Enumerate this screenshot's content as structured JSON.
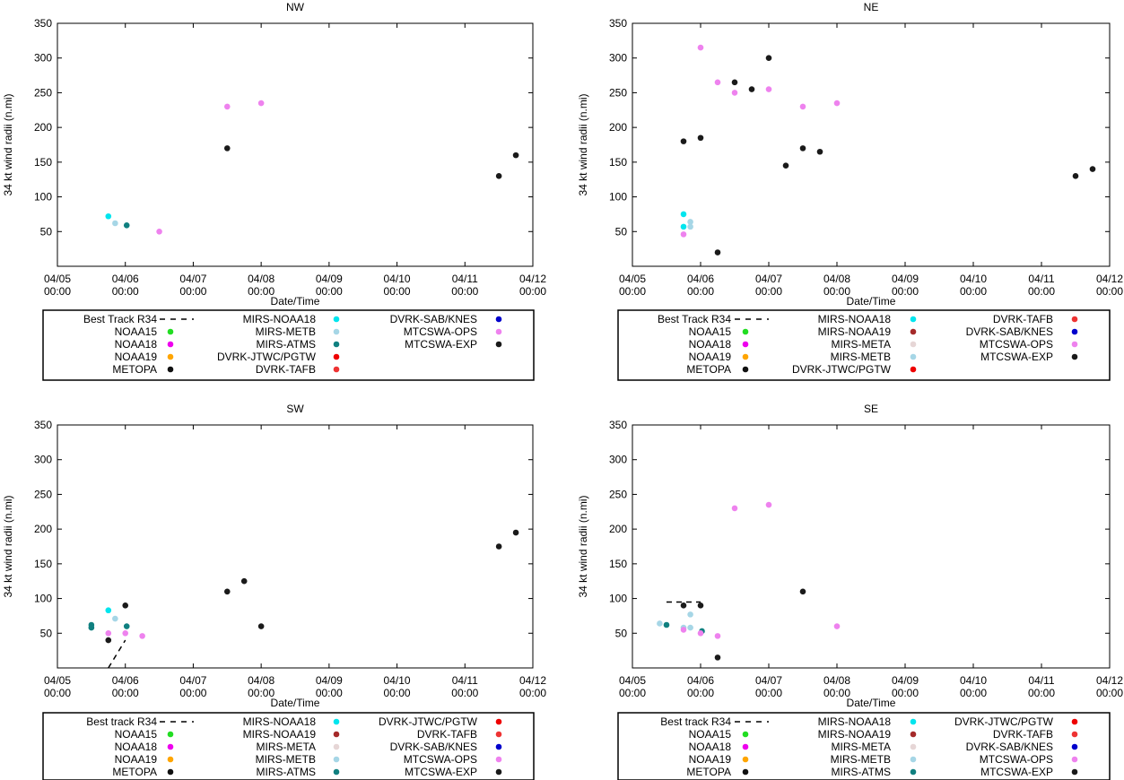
{
  "figure": {
    "xlabel": "Date/Time",
    "ylabel": "34 kt wind radii (n.mi)"
  },
  "colors": {
    "Best Track R34": "#000000",
    "Best track R34": "#000000",
    "NOAA15": "#22dd22",
    "NOAA18": "#ee00ee",
    "NOAA19": "#ffa500",
    "METOPA": "#111111",
    "MIRS-NOAA18": "#00e5ee",
    "MIRS-NOAA19": "#a52a2a",
    "MIRS-META": "#e6d6d6",
    "MIRS-METB": "#a6d6e6",
    "MIRS-ATMS": "#108080",
    "DVRK-JTWC/PGTW": "#ee0000",
    "DVRK-TAFB": "#ee3333",
    "DVRK-SAB/KNES": "#0000cc",
    "MTCSWA-OPS": "#ee82ee",
    "MTCSWA-EXP": "#1a1a1a"
  },
  "chart_data": [
    {
      "type": "scatter",
      "title": "NW",
      "xlabel": "Date/Time",
      "ylabel": "34 kt wind radii (n.mi)",
      "xlim": [
        5,
        12
      ],
      "ylim": [
        0,
        350
      ],
      "x_ticks": [
        {
          "x": 5,
          "date": "04/05",
          "time": "00:00"
        },
        {
          "x": 6,
          "date": "04/06",
          "time": "00:00"
        },
        {
          "x": 7,
          "date": "04/07",
          "time": "00:00"
        },
        {
          "x": 8,
          "date": "04/08",
          "time": "00:00"
        },
        {
          "x": 9,
          "date": "04/09",
          "time": "00:00"
        },
        {
          "x": 10,
          "date": "04/10",
          "time": "00:00"
        },
        {
          "x": 11,
          "date": "04/11",
          "time": "00:00"
        },
        {
          "x": 12,
          "date": "04/12",
          "time": "00:00"
        }
      ],
      "y_ticks": [
        "50",
        "100",
        "150",
        "200",
        "250",
        "300",
        "350"
      ],
      "legend": {
        "columns": [
          [
            "Best Track R34",
            "NOAA15",
            "NOAA18",
            "NOAA19",
            "METOPA"
          ],
          [
            "MIRS-NOAA18",
            "MIRS-METB",
            "MIRS-ATMS",
            "DVRK-JTWC/PGTW",
            "DVRK-TAFB"
          ],
          [
            "DVRK-SAB/KNES",
            "MTCSWA-OPS",
            "MTCSWA-EXP"
          ]
        ]
      },
      "series": [
        {
          "name": "MIRS-NOAA18",
          "points": [
            [
              5.75,
              72
            ]
          ]
        },
        {
          "name": "MIRS-METB",
          "points": [
            [
              5.85,
              62
            ]
          ]
        },
        {
          "name": "MIRS-ATMS",
          "points": [
            [
              6.02,
              59
            ]
          ]
        },
        {
          "name": "MTCSWA-OPS",
          "points": [
            [
              6.5,
              50
            ],
            [
              7.5,
              230
            ],
            [
              8.0,
              235
            ]
          ]
        },
        {
          "name": "MTCSWA-EXP",
          "points": [
            [
              7.5,
              170
            ],
            [
              11.5,
              130
            ],
            [
              11.75,
              160
            ]
          ]
        }
      ]
    },
    {
      "type": "scatter",
      "title": "NE",
      "xlabel": "Date/Time",
      "ylabel": "34 kt wind radii (n.mi)",
      "xlim": [
        5,
        12
      ],
      "ylim": [
        0,
        350
      ],
      "x_ticks": [
        {
          "x": 5,
          "date": "04/05",
          "time": "00:00"
        },
        {
          "x": 6,
          "date": "04/06",
          "time": "00:00"
        },
        {
          "x": 7,
          "date": "04/07",
          "time": "00:00"
        },
        {
          "x": 8,
          "date": "04/08",
          "time": "00:00"
        },
        {
          "x": 9,
          "date": "04/09",
          "time": "00:00"
        },
        {
          "x": 10,
          "date": "04/10",
          "time": "00:00"
        },
        {
          "x": 11,
          "date": "04/11",
          "time": "00:00"
        },
        {
          "x": 12,
          "date": "04/12",
          "time": "00:00"
        }
      ],
      "y_ticks": [
        "50",
        "100",
        "150",
        "200",
        "250",
        "300",
        "350"
      ],
      "legend": {
        "columns": [
          [
            "Best Track R34",
            "NOAA15",
            "NOAA18",
            "NOAA19",
            "METOPA"
          ],
          [
            "MIRS-NOAA18",
            "MIRS-NOAA19",
            "MIRS-META",
            "MIRS-METB",
            "DVRK-JTWC/PGTW"
          ],
          [
            "DVRK-TAFB",
            "DVRK-SAB/KNES",
            "MTCSWA-OPS",
            "MTCSWA-EXP"
          ]
        ]
      },
      "series": [
        {
          "name": "MIRS-NOAA18",
          "points": [
            [
              5.75,
              75
            ],
            [
              5.75,
              57
            ]
          ]
        },
        {
          "name": "MIRS-METB",
          "points": [
            [
              5.85,
              64
            ],
            [
              5.85,
              57
            ]
          ]
        },
        {
          "name": "MTCSWA-OPS",
          "points": [
            [
              5.75,
              46
            ],
            [
              6.0,
              315
            ],
            [
              6.25,
              265
            ],
            [
              6.5,
              250
            ],
            [
              7.0,
              255
            ],
            [
              7.5,
              230
            ],
            [
              8.0,
              235
            ]
          ]
        },
        {
          "name": "MTCSWA-EXP",
          "points": [
            [
              5.75,
              180
            ],
            [
              6.0,
              185
            ],
            [
              6.25,
              20
            ],
            [
              6.5,
              265
            ],
            [
              6.75,
              255
            ],
            [
              7.0,
              300
            ],
            [
              7.25,
              145
            ],
            [
              7.5,
              170
            ],
            [
              7.75,
              165
            ],
            [
              11.5,
              130
            ],
            [
              11.75,
              140
            ]
          ]
        }
      ]
    },
    {
      "type": "scatter",
      "title": "SW",
      "xlabel": "Date/Time",
      "ylabel": "34 kt wind radii (n.mi)",
      "xlim": [
        5,
        12
      ],
      "ylim": [
        0,
        350
      ],
      "x_ticks": [
        {
          "x": 5,
          "date": "04/05",
          "time": "00:00"
        },
        {
          "x": 6,
          "date": "04/06",
          "time": "00:00"
        },
        {
          "x": 7,
          "date": "04/07",
          "time": "00:00"
        },
        {
          "x": 8,
          "date": "04/08",
          "time": "00:00"
        },
        {
          "x": 9,
          "date": "04/09",
          "time": "00:00"
        },
        {
          "x": 10,
          "date": "04/10",
          "time": "00:00"
        },
        {
          "x": 11,
          "date": "04/11",
          "time": "00:00"
        },
        {
          "x": 12,
          "date": "04/12",
          "time": "00:00"
        }
      ],
      "y_ticks": [
        "50",
        "100",
        "150",
        "200",
        "250",
        "300",
        "350"
      ],
      "legend": {
        "columns": [
          [
            "Best track R34",
            "NOAA15",
            "NOAA18",
            "NOAA19",
            "METOPA"
          ],
          [
            "MIRS-NOAA18",
            "MIRS-NOAA19",
            "MIRS-META",
            "MIRS-METB",
            "MIRS-ATMS"
          ],
          [
            "DVRK-JTWC/PGTW",
            "DVRK-TAFB",
            "DVRK-SAB/KNES",
            "MTCSWA-OPS",
            "MTCSWA-EXP"
          ]
        ]
      },
      "best_track": [
        [
          5.75,
          0
        ],
        [
          6.0,
          40
        ]
      ],
      "series": [
        {
          "name": "MIRS-ATMS",
          "points": [
            [
              5.5,
              62
            ],
            [
              5.5,
              58
            ],
            [
              6.02,
              60
            ]
          ]
        },
        {
          "name": "MIRS-NOAA18",
          "points": [
            [
              5.75,
              83
            ]
          ]
        },
        {
          "name": "MIRS-METB",
          "points": [
            [
              5.85,
              71
            ]
          ]
        },
        {
          "name": "MTCSWA-OPS",
          "points": [
            [
              5.75,
              50
            ],
            [
              6.0,
              50
            ],
            [
              6.25,
              46
            ]
          ]
        },
        {
          "name": "MTCSWA-EXP",
          "points": [
            [
              5.75,
              40
            ],
            [
              6.0,
              90
            ],
            [
              7.5,
              110
            ],
            [
              7.75,
              125
            ],
            [
              8.0,
              60
            ],
            [
              11.5,
              175
            ],
            [
              11.75,
              195
            ]
          ]
        }
      ]
    },
    {
      "type": "scatter",
      "title": "SE",
      "xlabel": "Date/Time",
      "ylabel": "34 kt wind radii (n.mi)",
      "xlim": [
        5,
        12
      ],
      "ylim": [
        0,
        350
      ],
      "x_ticks": [
        {
          "x": 5,
          "date": "04/05",
          "time": "00:00"
        },
        {
          "x": 6,
          "date": "04/06",
          "time": "00:00"
        },
        {
          "x": 7,
          "date": "04/07",
          "time": "00:00"
        },
        {
          "x": 8,
          "date": "04/08",
          "time": "00:00"
        },
        {
          "x": 9,
          "date": "04/09",
          "time": "00:00"
        },
        {
          "x": 10,
          "date": "04/10",
          "time": "00:00"
        },
        {
          "x": 11,
          "date": "04/11",
          "time": "00:00"
        },
        {
          "x": 12,
          "date": "04/12",
          "time": "00:00"
        }
      ],
      "y_ticks": [
        "50",
        "100",
        "150",
        "200",
        "250",
        "300",
        "350"
      ],
      "legend": {
        "columns": [
          [
            "Best track R34",
            "NOAA15",
            "NOAA18",
            "NOAA19",
            "METOPA"
          ],
          [
            "MIRS-NOAA18",
            "MIRS-NOAA19",
            "MIRS-META",
            "MIRS-METB",
            "MIRS-ATMS"
          ],
          [
            "DVRK-JTWC/PGTW",
            "DVRK-TAFB",
            "DVRK-SAB/KNES",
            "MTCSWA-OPS",
            "MTCSWA-EXP"
          ]
        ]
      },
      "best_track": [
        [
          5.5,
          95
        ],
        [
          6.0,
          95
        ]
      ],
      "series": [
        {
          "name": "MIRS-METB",
          "points": [
            [
              5.4,
              64
            ],
            [
              5.75,
              58
            ],
            [
              5.85,
              77
            ],
            [
              5.85,
              58
            ]
          ]
        },
        {
          "name": "MIRS-ATMS",
          "points": [
            [
              5.5,
              62
            ],
            [
              6.02,
              53
            ]
          ]
        },
        {
          "name": "MTCSWA-OPS",
          "points": [
            [
              5.75,
              55
            ],
            [
              6.0,
              50
            ],
            [
              6.25,
              46
            ],
            [
              6.5,
              230
            ],
            [
              7.0,
              235
            ],
            [
              8.0,
              60
            ]
          ]
        },
        {
          "name": "MTCSWA-EXP",
          "points": [
            [
              5.75,
              90
            ],
            [
              6.0,
              90
            ],
            [
              6.25,
              15
            ],
            [
              7.5,
              110
            ]
          ]
        }
      ]
    }
  ]
}
